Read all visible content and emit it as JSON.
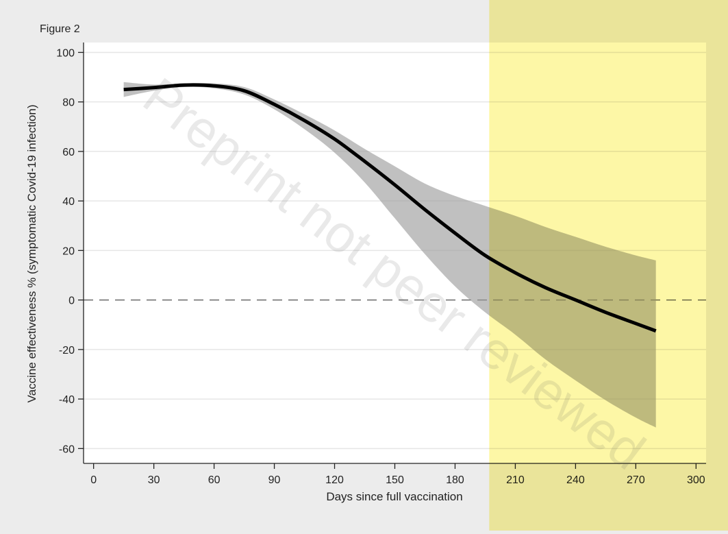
{
  "figure_label": "Figure 2",
  "watermark": "Preprint not peer reviewed",
  "colors": {
    "outer_background": "#ececec",
    "plot_background": "#ffffff",
    "highlight_band": "#fdf7a6",
    "ci_band": "#9a9a9a",
    "line": "#000000",
    "reference_line": "#6a6a6a",
    "grid": "#e6e6e6"
  },
  "chart_data": {
    "type": "line",
    "title": "",
    "xlabel": "Days since full vaccination",
    "ylabel": "Vaccine effectiveness % (symptomatic Covid-19 infection)",
    "xlim": [
      -5,
      305
    ],
    "ylim": [
      -66,
      104
    ],
    "xticks": [
      0,
      30,
      60,
      90,
      120,
      150,
      180,
      210,
      240,
      270,
      300
    ],
    "xtick_labels": [
      "0",
      "30",
      "60",
      "90",
      "120",
      "150",
      "180",
      "210",
      "240",
      "270",
      "300"
    ],
    "yticks": [
      -60,
      -40,
      -20,
      0,
      20,
      40,
      60,
      80,
      100
    ],
    "ytick_labels": [
      "-60",
      "-40",
      "-20",
      "0",
      "20",
      "40",
      "60",
      "80",
      "100"
    ],
    "grid": "horizontal",
    "reference_line_y": 0,
    "highlight_region_x": [
      197,
      305
    ],
    "series": [
      {
        "role": "point-estimate",
        "x": [
          15,
          30,
          45,
          60,
          75,
          90,
          105,
          120,
          135,
          150,
          165,
          180,
          195,
          210,
          225,
          240,
          255,
          270,
          280
        ],
        "y": [
          85,
          85.8,
          86.8,
          86.5,
          84.5,
          79,
          72.5,
          65,
          56,
          46.5,
          36.5,
          27,
          18,
          11,
          5,
          0,
          -5,
          -9.5,
          -12.5
        ]
      },
      {
        "role": "confidence-interval",
        "x": [
          15,
          30,
          45,
          60,
          75,
          90,
          105,
          120,
          135,
          150,
          165,
          180,
          195,
          210,
          225,
          240,
          255,
          270,
          280
        ],
        "lower": [
          82,
          84.5,
          86,
          85.5,
          83,
          77,
          69,
          59.5,
          47.5,
          33,
          18.5,
          5.5,
          -5,
          -14,
          -24,
          -32.5,
          -40.5,
          -47.5,
          -51.5
        ],
        "upper": [
          88,
          87,
          87.5,
          87.5,
          86,
          81,
          75,
          68.5,
          61,
          54,
          47,
          42,
          38,
          34,
          29.5,
          25.5,
          21.5,
          18,
          16
        ]
      }
    ]
  }
}
